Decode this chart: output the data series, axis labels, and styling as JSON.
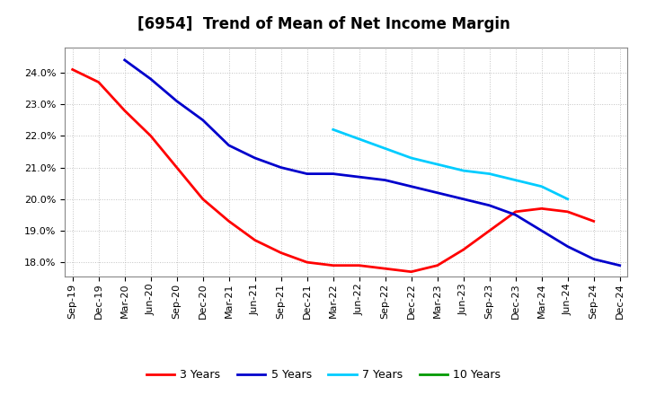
{
  "title": "[6954]  Trend of Mean of Net Income Margin",
  "x_labels": [
    "Sep-19",
    "Dec-19",
    "Mar-20",
    "Jun-20",
    "Sep-20",
    "Dec-20",
    "Mar-21",
    "Jun-21",
    "Sep-21",
    "Dec-21",
    "Mar-22",
    "Jun-22",
    "Sep-22",
    "Dec-22",
    "Mar-23",
    "Jun-23",
    "Sep-23",
    "Dec-23",
    "Mar-24",
    "Jun-24",
    "Sep-24",
    "Dec-24"
  ],
  "ylim": [
    0.1755,
    0.248
  ],
  "yticks": [
    0.18,
    0.19,
    0.2,
    0.21,
    0.22,
    0.23,
    0.24
  ],
  "series_order": [
    "3 Years",
    "5 Years",
    "7 Years",
    "10 Years"
  ],
  "series": {
    "3 Years": {
      "color": "#ff0000",
      "values": [
        0.241,
        0.237,
        0.228,
        0.22,
        0.21,
        0.2,
        0.193,
        0.187,
        0.183,
        0.18,
        0.179,
        0.179,
        0.178,
        0.177,
        0.179,
        0.184,
        0.19,
        0.196,
        0.197,
        0.196,
        0.193,
        null
      ]
    },
    "5 Years": {
      "color": "#0000cc",
      "values": [
        null,
        null,
        0.244,
        0.238,
        0.231,
        0.225,
        0.217,
        0.213,
        0.21,
        0.208,
        0.208,
        0.207,
        0.206,
        0.204,
        0.202,
        0.2,
        0.198,
        0.195,
        0.19,
        0.185,
        0.181,
        0.179
      ]
    },
    "7 Years": {
      "color": "#00ccff",
      "values": [
        null,
        null,
        null,
        null,
        null,
        null,
        null,
        null,
        null,
        null,
        0.222,
        0.219,
        0.216,
        0.213,
        0.211,
        0.209,
        0.208,
        0.206,
        0.204,
        0.2,
        null,
        null
      ]
    },
    "10 Years": {
      "color": "#009900",
      "values": [
        null,
        null,
        null,
        null,
        null,
        null,
        null,
        null,
        null,
        null,
        null,
        null,
        null,
        null,
        null,
        null,
        null,
        null,
        null,
        null,
        null,
        null
      ]
    }
  },
  "background_color": "#ffffff",
  "grid_color": "#bbbbbb",
  "title_fontsize": 12,
  "tick_fontsize": 8,
  "legend_fontsize": 9,
  "line_width": 2.0
}
